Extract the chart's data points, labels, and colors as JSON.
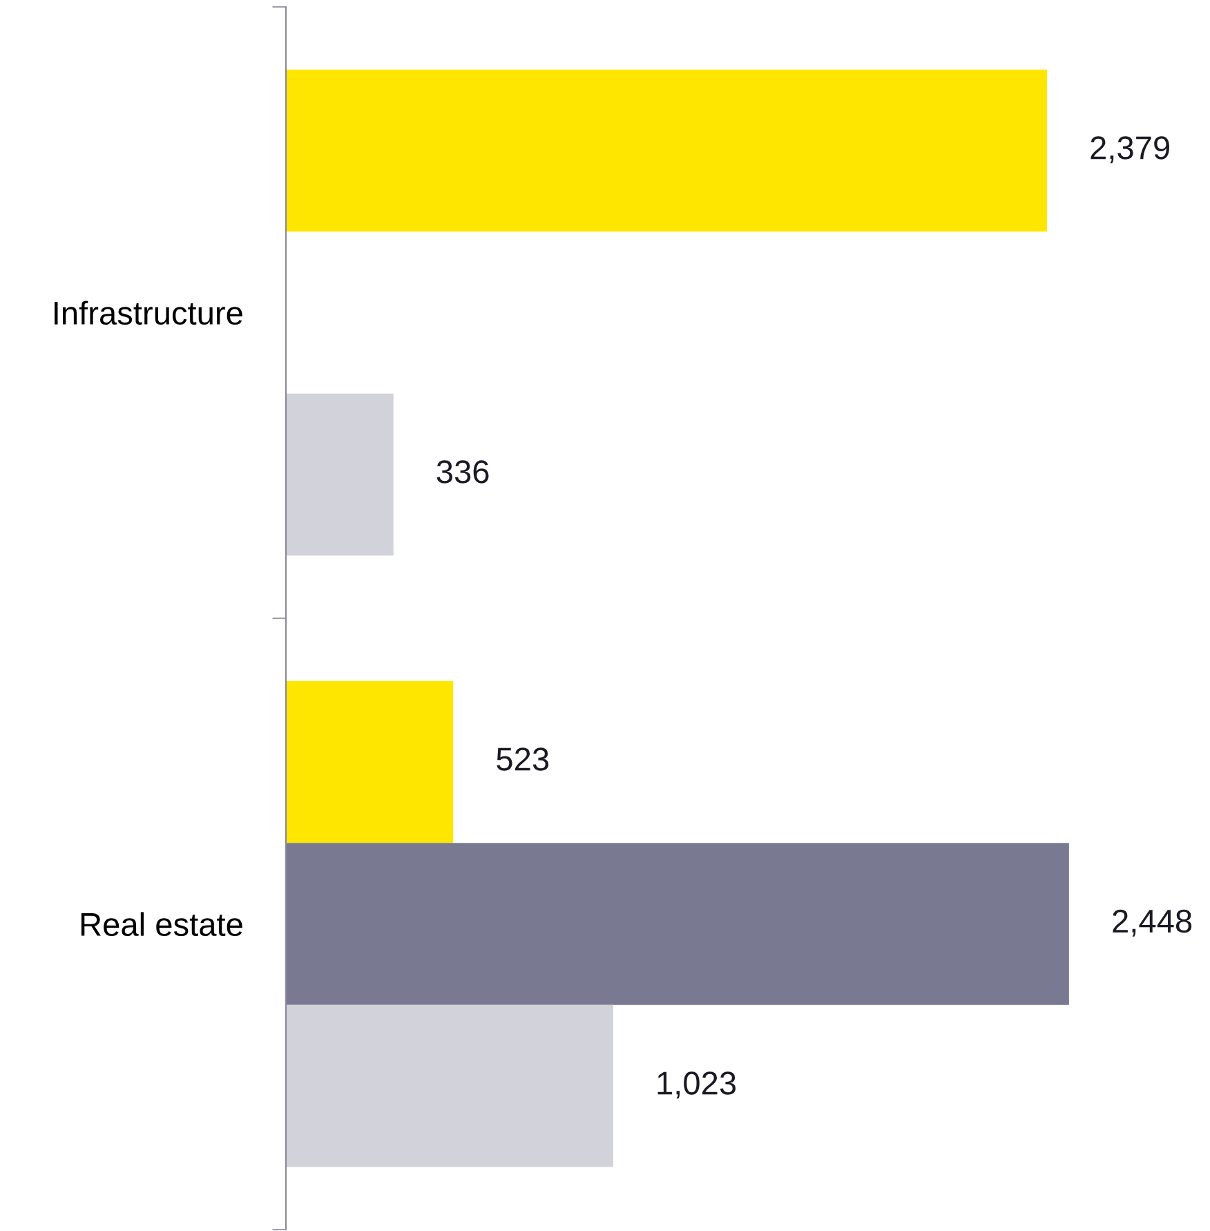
{
  "chart_data": {
    "type": "bar",
    "orientation": "horizontal",
    "categories": [
      "Infrastructure",
      "Real estate"
    ],
    "grid": false,
    "legend": false,
    "series": [
      {
        "color": "#ffe600",
        "values": [
          2379,
          523
        ],
        "value_labels": [
          "2,379",
          "523"
        ]
      },
      {
        "color": "#797991",
        "values": [
          null,
          2448
        ],
        "value_labels": [
          null,
          "2,448"
        ]
      },
      {
        "color": "#d2d2da",
        "values": [
          336,
          1023
        ],
        "value_labels": [
          "336",
          "1,023"
        ]
      }
    ]
  }
}
